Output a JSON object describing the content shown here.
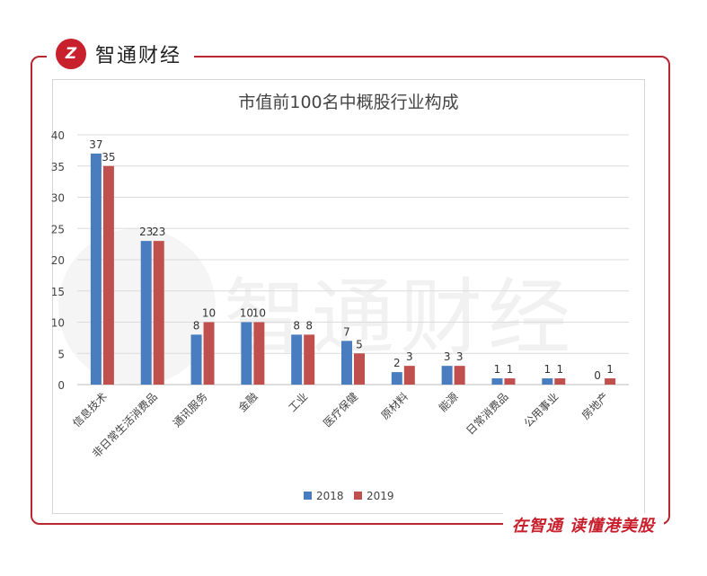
{
  "brand": {
    "logo_text": "Z",
    "name": "智通财经"
  },
  "slogan": "在智通 读懂港美股",
  "watermark": "智通财经",
  "colors": {
    "series_2018": "#4a7dbf",
    "series_2019": "#c0504d",
    "accent": "#c8202d"
  },
  "chart_data": {
    "type": "bar",
    "title": "市值前100名中概股行业构成",
    "categories": [
      "信息技术",
      "非日常生活消费品",
      "通讯服务",
      "金融",
      "工业",
      "医疗保健",
      "原材料",
      "能源",
      "日常消费品",
      "公用事业",
      "房地产"
    ],
    "series": [
      {
        "name": "2018",
        "values": [
          37,
          23,
          8,
          10,
          8,
          7,
          2,
          3,
          1,
          1,
          0
        ]
      },
      {
        "name": "2019",
        "values": [
          35,
          23,
          10,
          10,
          8,
          5,
          3,
          3,
          1,
          1,
          1
        ]
      }
    ],
    "ylim": [
      0,
      40
    ],
    "yticks": [
      0,
      5,
      10,
      15,
      20,
      25,
      30,
      35,
      40
    ],
    "grid": true,
    "legend": "bottom"
  }
}
